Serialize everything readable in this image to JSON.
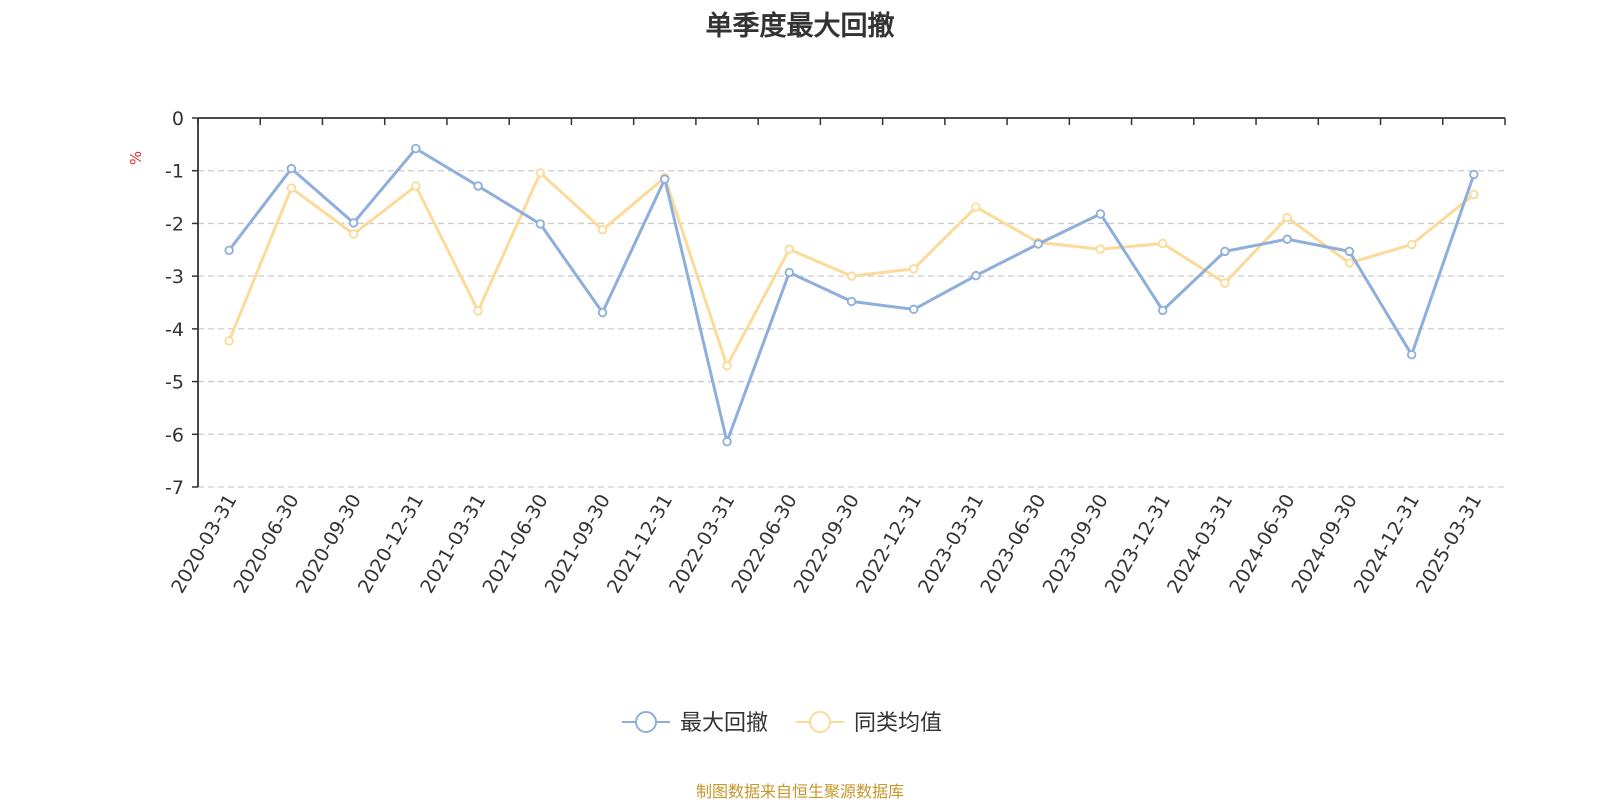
{
  "chart_data": {
    "type": "line",
    "title": "单季度最大回撤",
    "ylabel": "%",
    "ylim": [
      -7,
      0
    ],
    "yticks": [
      0,
      -1,
      -2,
      -3,
      -4,
      -5,
      -6,
      -7
    ],
    "categories": [
      "2020-03-31",
      "2020-06-30",
      "2020-09-30",
      "2020-12-31",
      "2021-03-31",
      "2021-06-30",
      "2021-09-30",
      "2021-12-31",
      "2022-03-31",
      "2022-06-30",
      "2022-09-30",
      "2022-12-31",
      "2023-03-31",
      "2023-06-30",
      "2023-09-30",
      "2023-12-31",
      "2024-03-31",
      "2024-06-30",
      "2024-09-30",
      "2024-12-31",
      "2025-03-31"
    ],
    "series": [
      {
        "name": "最大回撤",
        "color": "#8eaedb",
        "values": [
          -2.51,
          -0.96,
          -1.99,
          -0.58,
          -1.29,
          -2.01,
          -3.69,
          -1.16,
          -6.14,
          -2.93,
          -3.48,
          -3.63,
          -2.99,
          -2.39,
          -1.82,
          -3.65,
          -2.53,
          -2.3,
          -2.53,
          -4.49,
          -1.07
        ]
      },
      {
        "name": "同类均值",
        "color": "#fbda9a",
        "values": [
          -4.23,
          -1.33,
          -2.2,
          -1.29,
          -3.66,
          -1.04,
          -2.12,
          -1.13,
          -4.7,
          -2.49,
          -3.0,
          -2.86,
          -1.69,
          -2.36,
          -2.49,
          -2.38,
          -3.13,
          -1.89,
          -2.75,
          -2.4,
          -1.45
        ]
      }
    ],
    "grid": true,
    "legend_position": "bottom-center"
  },
  "axis_color": "#333333",
  "grid_color": "#cccccc",
  "unit_color": "#e03030",
  "source": {
    "text": "制图数据来自恒生聚源数据库",
    "color": "#c8962a"
  }
}
